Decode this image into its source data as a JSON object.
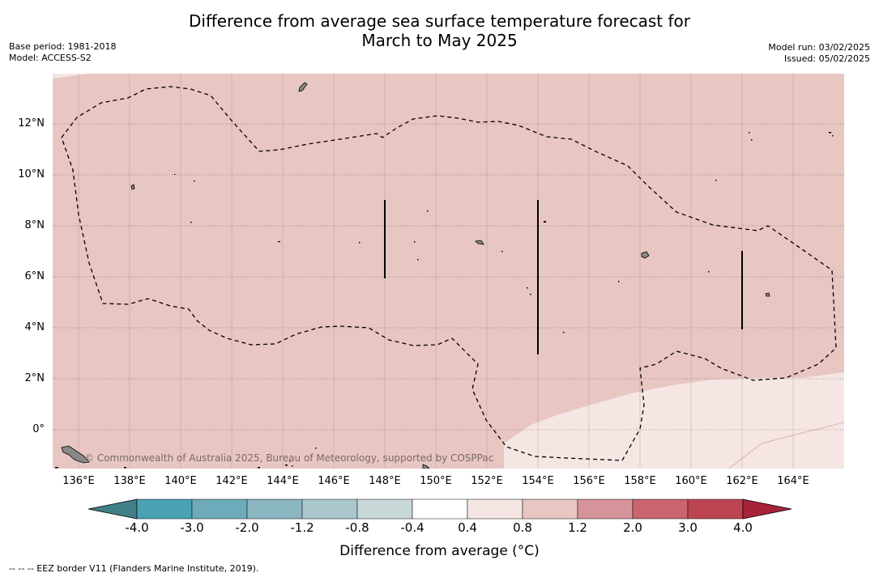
{
  "header": {
    "title_line1": "Difference from average sea surface temperature forecast for",
    "title_line2": "March to May 2025",
    "base_period": "Base period: 1981-2018",
    "model": "Model: ACCESS-S2",
    "model_run": "Model run: 03/02/2025",
    "issued": "Issued: 05/02/2025"
  },
  "map": {
    "lat_labels": [
      "12°N",
      "10°N",
      "8°N",
      "6°N",
      "4°N",
      "2°N",
      "0°"
    ],
    "lon_labels": [
      "136°E",
      "138°E",
      "140°E",
      "142°E",
      "144°E",
      "146°E",
      "148°E",
      "150°E",
      "152°E",
      "154°E",
      "156°E",
      "158°E",
      "160°E",
      "162°E",
      "164°E"
    ],
    "copyright": "© Commonwealth of Australia 2025, Bureau of Meteorology, supported by COSPPac",
    "colors": {
      "anomaly_0_4_to_0_8": "#f5e6e4",
      "anomaly_0_8_to_1_2": "#e8c6c2",
      "land": "#888888",
      "grid": "#8a8a8a"
    }
  },
  "colorbar": {
    "labels": [
      "-4.0",
      "-3.0",
      "-2.0",
      "-1.2",
      "-0.8",
      "-0.4",
      "0.4",
      "0.8",
      "1.2",
      "2.0",
      "3.0",
      "4.0"
    ],
    "colors": [
      "#3f7f88",
      "#4aa2b4",
      "#6dabbb",
      "#8ab6c1",
      "#a9c7cc",
      "#c8d7d8",
      "#ffffff",
      "#f5e6e4",
      "#e8c6c2",
      "#d6949a",
      "#c8656f",
      "#bd4552",
      "#a8233a"
    ],
    "title": "Difference from average (°C)"
  },
  "footnote": "--  --  -- EEZ border V11 (Flanders Marine Institute, 2019)."
}
